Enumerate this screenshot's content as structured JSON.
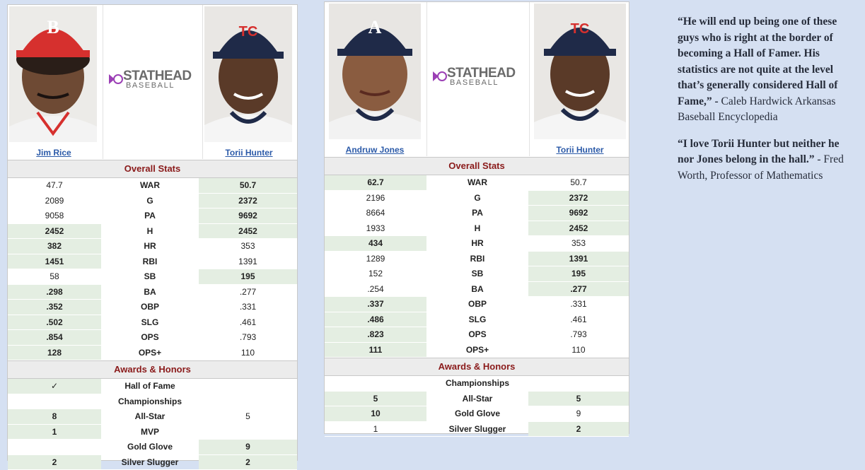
{
  "left": {
    "player1": {
      "name": "Jim Rice",
      "cap_color": "#d6302e",
      "cap_letter": "B"
    },
    "player2": {
      "name": "Torii Hunter",
      "cap_color": "#1f2a48",
      "cap_letter": "TC"
    },
    "logo": {
      "title": "STATHEAD",
      "subtitle": "BASEBALL"
    },
    "overall_title": "Overall Stats",
    "stats": [
      {
        "label": "WAR",
        "p1": "47.7",
        "p2": "50.7",
        "win": "p2"
      },
      {
        "label": "G",
        "p1": "2089",
        "p2": "2372",
        "win": "p2"
      },
      {
        "label": "PA",
        "p1": "9058",
        "p2": "9692",
        "win": "p2"
      },
      {
        "label": "H",
        "p1": "2452",
        "p2": "2452",
        "win": "both"
      },
      {
        "label": "HR",
        "p1": "382",
        "p2": "353",
        "win": "p1"
      },
      {
        "label": "RBI",
        "p1": "1451",
        "p2": "1391",
        "win": "p1"
      },
      {
        "label": "SB",
        "p1": "58",
        "p2": "195",
        "win": "p2"
      },
      {
        "label": "BA",
        "p1": ".298",
        "p2": ".277",
        "win": "p1"
      },
      {
        "label": "OBP",
        "p1": ".352",
        "p2": ".331",
        "win": "p1"
      },
      {
        "label": "SLG",
        "p1": ".502",
        "p2": ".461",
        "win": "p1"
      },
      {
        "label": "OPS",
        "p1": ".854",
        "p2": ".793",
        "win": "p1"
      },
      {
        "label": "OPS+",
        "p1": "128",
        "p2": "110",
        "win": "p1"
      }
    ],
    "awards_title": "Awards & Honors",
    "awards": [
      {
        "label": "Hall of Fame",
        "p1": "✓",
        "p2": "",
        "win": "p1-plain"
      },
      {
        "label": "Championships",
        "p1": "",
        "p2": "",
        "win": "none"
      },
      {
        "label": "All-Star",
        "p1": "8",
        "p2": "5",
        "win": "p1"
      },
      {
        "label": "MVP",
        "p1": "1",
        "p2": "",
        "win": "p1"
      },
      {
        "label": "Gold Glove",
        "p1": "",
        "p2": "9",
        "win": "p2"
      },
      {
        "label": "Silver Slugger",
        "p1": "2",
        "p2": "2",
        "win": "both"
      }
    ]
  },
  "right": {
    "player1": {
      "name": "Andruw Jones",
      "cap_color": "#1f2a48",
      "cap_letter": "A"
    },
    "player2": {
      "name": "Torii Hunter",
      "cap_color": "#1f2a48",
      "cap_letter": "TC"
    },
    "logo": {
      "title": "STATHEAD",
      "subtitle": "BASEBALL"
    },
    "overall_title": "Overall Stats",
    "stats": [
      {
        "label": "WAR",
        "p1": "62.7",
        "p2": "50.7",
        "win": "p1"
      },
      {
        "label": "G",
        "p1": "2196",
        "p2": "2372",
        "win": "p2"
      },
      {
        "label": "PA",
        "p1": "8664",
        "p2": "9692",
        "win": "p2"
      },
      {
        "label": "H",
        "p1": "1933",
        "p2": "2452",
        "win": "p2"
      },
      {
        "label": "HR",
        "p1": "434",
        "p2": "353",
        "win": "p1"
      },
      {
        "label": "RBI",
        "p1": "1289",
        "p2": "1391",
        "win": "p2"
      },
      {
        "label": "SB",
        "p1": "152",
        "p2": "195",
        "win": "p2"
      },
      {
        "label": "BA",
        "p1": ".254",
        "p2": ".277",
        "win": "p2"
      },
      {
        "label": "OBP",
        "p1": ".337",
        "p2": ".331",
        "win": "p1"
      },
      {
        "label": "SLG",
        "p1": ".486",
        "p2": ".461",
        "win": "p1"
      },
      {
        "label": "OPS",
        "p1": ".823",
        "p2": ".793",
        "win": "p1"
      },
      {
        "label": "OPS+",
        "p1": "111",
        "p2": "110",
        "win": "p1"
      }
    ],
    "awards_title": "Awards & Honors",
    "awards": [
      {
        "label": "Championships",
        "p1": "",
        "p2": "",
        "win": "none"
      },
      {
        "label": "All-Star",
        "p1": "5",
        "p2": "5",
        "win": "both"
      },
      {
        "label": "Gold Glove",
        "p1": "10",
        "p2": "9",
        "win": "p1"
      },
      {
        "label": "Silver Slugger",
        "p1": "1",
        "p2": "2",
        "win": "p2"
      }
    ]
  },
  "quotes": [
    {
      "text": "“He will end up being one of these guys who is right at the border of becoming a Hall of Famer. His statistics are not quite at the level that’s generally considered Hall of Fame,” -",
      "attribution": " Caleb Hardwick Arkansas Baseball Encyclopedia"
    },
    {
      "text": "“I love Torii Hunter but neither he nor Jones belong in the hall.”",
      "attribution": "  - Fred Worth, Professor of Mathematics"
    }
  ],
  "colors": {
    "highlight": "#e4eee2",
    "section_text": "#8a1a1a",
    "link": "#2b5aa8",
    "logo_purple": "#9b3fb5",
    "background": "#d5e0f2"
  }
}
